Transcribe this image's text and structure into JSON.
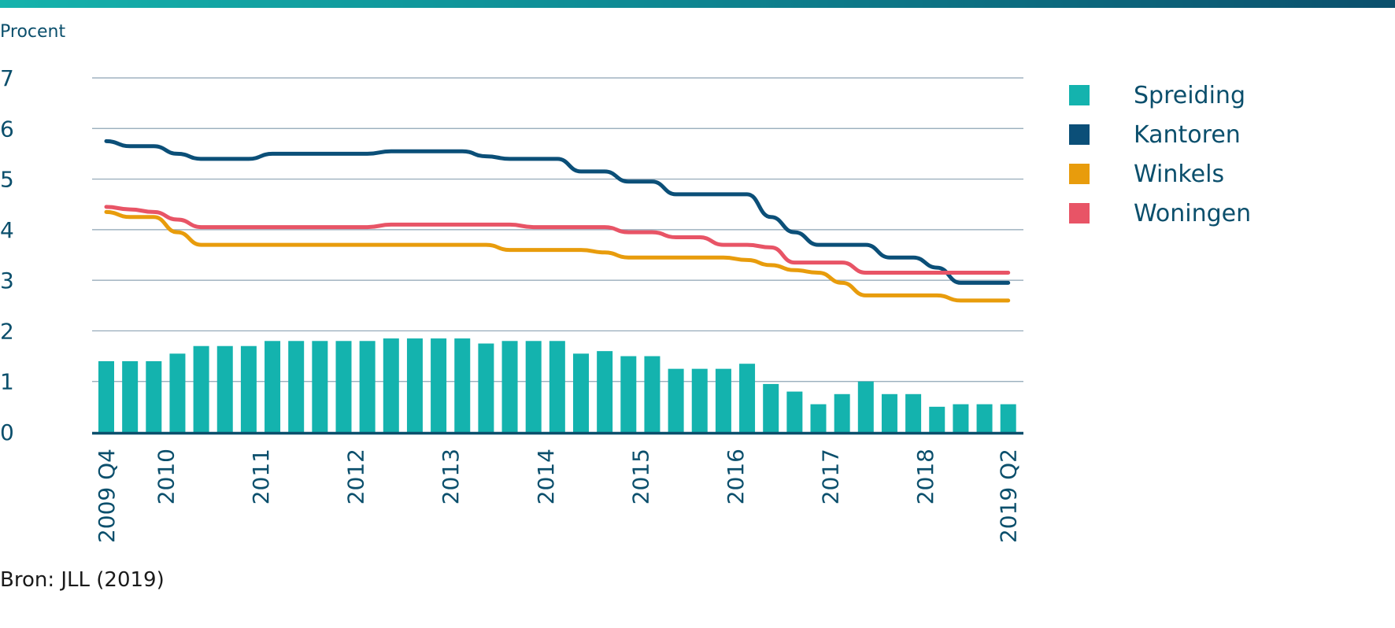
{
  "header": {
    "unit_label": "Procent"
  },
  "footer": {
    "source": "Bron: JLL (2019)"
  },
  "colors": {
    "spreiding": "#14b3ae",
    "kantoren": "#0b4f78",
    "winkels": "#e89c0c",
    "woningen": "#e85466",
    "axis_text": "#0b4f6c",
    "grid": "#8ea4b4"
  },
  "chart_data": {
    "type": "bar",
    "ylim": [
      0,
      7
    ],
    "yticks": [
      "0",
      "1",
      "2",
      "3",
      "4",
      "5",
      "6",
      "7"
    ],
    "grid": true,
    "legend_position": "right",
    "xtick_labels": [
      {
        "label": "2009 Q4",
        "index": 0
      },
      {
        "label": "2010",
        "index": 2.5
      },
      {
        "label": "2011",
        "index": 6.5
      },
      {
        "label": "2012",
        "index": 10.5
      },
      {
        "label": "2013",
        "index": 14.5
      },
      {
        "label": "2014",
        "index": 18.5
      },
      {
        "label": "2015",
        "index": 22.5
      },
      {
        "label": "2016",
        "index": 26.5
      },
      {
        "label": "2017",
        "index": 30.5
      },
      {
        "label": "2018",
        "index": 34.5
      },
      {
        "label": "2019 Q2",
        "index": 38
      }
    ],
    "series": [
      {
        "name": "Spreiding",
        "type": "bar",
        "color": "#14b3ae",
        "values": [
          1.4,
          1.4,
          1.4,
          1.55,
          1.7,
          1.7,
          1.7,
          1.8,
          1.8,
          1.8,
          1.8,
          1.8,
          1.85,
          1.85,
          1.85,
          1.85,
          1.75,
          1.8,
          1.8,
          1.8,
          1.55,
          1.6,
          1.5,
          1.5,
          1.25,
          1.25,
          1.25,
          1.35,
          0.95,
          0.8,
          0.55,
          0.75,
          1.0,
          0.75,
          0.75,
          0.5,
          0.55,
          0.55,
          0.55
        ]
      },
      {
        "name": "Kantoren",
        "type": "line",
        "color": "#0b4f78",
        "values": [
          5.75,
          5.65,
          5.65,
          5.5,
          5.4,
          5.4,
          5.4,
          5.5,
          5.5,
          5.5,
          5.5,
          5.5,
          5.55,
          5.55,
          5.55,
          5.55,
          5.45,
          5.4,
          5.4,
          5.4,
          5.15,
          5.15,
          4.95,
          4.95,
          4.7,
          4.7,
          4.7,
          4.7,
          4.25,
          3.95,
          3.7,
          3.7,
          3.7,
          3.45,
          3.45,
          3.25,
          2.95,
          2.95,
          2.95
        ]
      },
      {
        "name": "Winkels",
        "type": "line",
        "color": "#e89c0c",
        "values": [
          4.35,
          4.25,
          4.25,
          3.95,
          3.7,
          3.7,
          3.7,
          3.7,
          3.7,
          3.7,
          3.7,
          3.7,
          3.7,
          3.7,
          3.7,
          3.7,
          3.7,
          3.6,
          3.6,
          3.6,
          3.6,
          3.55,
          3.45,
          3.45,
          3.45,
          3.45,
          3.45,
          3.4,
          3.3,
          3.2,
          3.15,
          2.95,
          2.7,
          2.7,
          2.7,
          2.7,
          2.6,
          2.6,
          2.6
        ]
      },
      {
        "name": "Woningen",
        "type": "line",
        "color": "#e85466",
        "values": [
          4.45,
          4.4,
          4.35,
          4.2,
          4.05,
          4.05,
          4.05,
          4.05,
          4.05,
          4.05,
          4.05,
          4.05,
          4.1,
          4.1,
          4.1,
          4.1,
          4.1,
          4.1,
          4.05,
          4.05,
          4.05,
          4.05,
          3.95,
          3.95,
          3.85,
          3.85,
          3.7,
          3.7,
          3.65,
          3.35,
          3.35,
          3.35,
          3.15,
          3.15,
          3.15,
          3.15,
          3.15,
          3.15,
          3.15
        ]
      }
    ]
  }
}
